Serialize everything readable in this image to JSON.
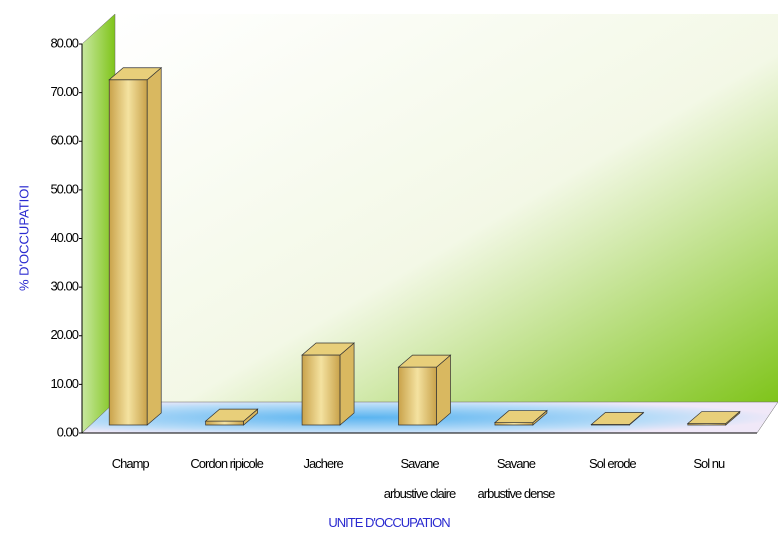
{
  "chart_data": {
    "type": "bar3d",
    "title_y": "% D'OCCUPATIOI",
    "title_x": "UNITE D'OCCUPATION",
    "categories": [
      "Champ",
      "Cordon ripicole",
      "Jachere",
      "Savane arbustive claire",
      "Savane arbustive dense",
      "Sol erode",
      "Sol nu"
    ],
    "values": [
      71.0,
      0.8,
      14.4,
      11.9,
      0.5,
      0.1,
      0.3
    ],
    "color": "#e8cf7a",
    "ylim": [
      0,
      80
    ],
    "yticks": [
      {
        "value": 0,
        "label": "0.00"
      },
      {
        "value": 10,
        "label": "10.00"
      },
      {
        "value": 20,
        "label": "20.00"
      },
      {
        "value": 30,
        "label": "30.00"
      },
      {
        "value": 40,
        "label": "40.00"
      },
      {
        "value": 50,
        "label": "50.00"
      },
      {
        "value": 60,
        "label": "60.00"
      },
      {
        "value": 70,
        "label": "70.00"
      },
      {
        "value": 80,
        "label": "80.00"
      }
    ]
  }
}
